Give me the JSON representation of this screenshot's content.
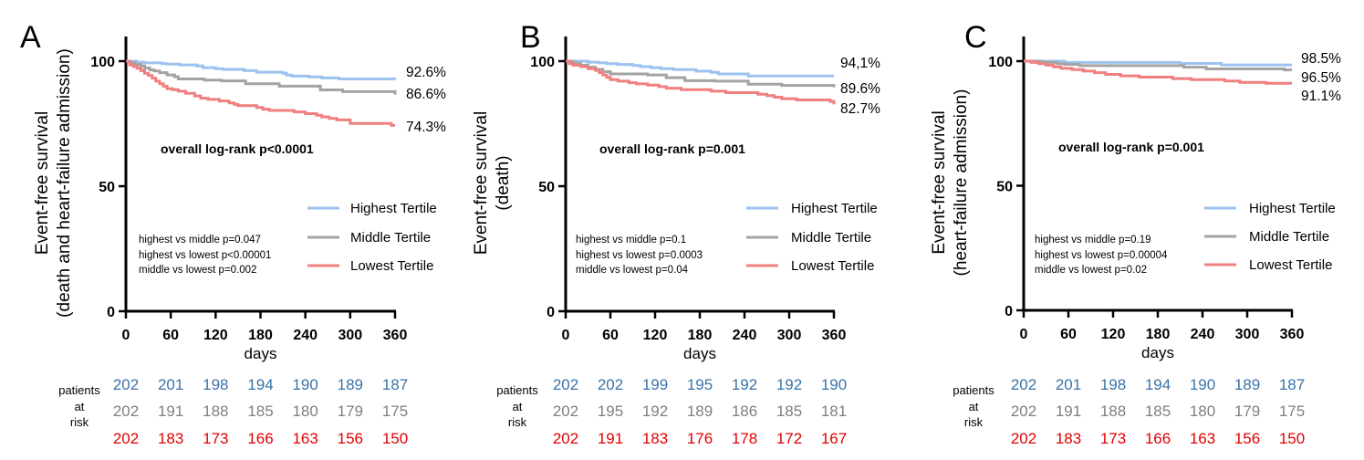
{
  "colors": {
    "highest": "#9cc3ef",
    "middle": "#a3a3a3",
    "lowest": "#f08080",
    "risk_highest": "#3a73a8",
    "risk_middle": "#7f7f7f",
    "risk_lowest": "#e00000"
  },
  "chart_data": [
    {
      "type": "line",
      "panel_letter": "A",
      "ylabel": [
        "Event-free survival",
        "(death and heart-failure admission)"
      ],
      "xlabel": "days",
      "xlim": [
        0,
        360
      ],
      "ylim": [
        0,
        100
      ],
      "xticks": [
        0,
        60,
        120,
        180,
        240,
        300,
        360
      ],
      "yticks": [
        0,
        50,
        100
      ],
      "annotation": "overall log-rank p<0.0001",
      "pairwise": [
        "highest vs middle p=0.047",
        "highest vs lowest p<0.00001",
        "middle vs lowest p=0.002"
      ],
      "series": [
        {
          "name": "Highest Tertile",
          "end_label": "92.6%",
          "x": [
            0,
            14,
            25,
            40,
            48,
            55,
            72,
            95,
            103,
            120,
            130,
            158,
            175,
            210,
            215,
            222,
            245,
            262,
            285,
            355,
            360
          ],
          "y": [
            100,
            99.6,
            99.3,
            99.3,
            99.0,
            98.8,
            98.5,
            98.1,
            97.4,
            97.0,
            96.7,
            96.2,
            95.6,
            95.2,
            94.4,
            94.0,
            93.7,
            93.3,
            92.9,
            92.9,
            92.6
          ]
        },
        {
          "name": "Middle Tertile",
          "end_label": "86.6%",
          "x": [
            0,
            5,
            12,
            20,
            25,
            32,
            38,
            45,
            55,
            65,
            70,
            105,
            128,
            160,
            205,
            260,
            290,
            355,
            360
          ],
          "y": [
            100,
            99.3,
            98.7,
            98.1,
            97.3,
            96.5,
            96.1,
            95.4,
            94.5,
            93.8,
            92.9,
            92.4,
            92.1,
            91.0,
            90.0,
            88.5,
            87.8,
            87.8,
            86.6
          ]
        },
        {
          "name": "Lowest Tertile",
          "end_label": "74.3%",
          "x": [
            0,
            5,
            10,
            15,
            20,
            25,
            30,
            35,
            40,
            45,
            50,
            55,
            62,
            70,
            80,
            92,
            100,
            110,
            125,
            138,
            145,
            150,
            162,
            175,
            183,
            192,
            210,
            225,
            240,
            255,
            262,
            272,
            282,
            290,
            300,
            345,
            355,
            360
          ],
          "y": [
            100,
            98.5,
            97.8,
            97.1,
            96.2,
            95.1,
            94.3,
            93.2,
            92.0,
            91.0,
            90.0,
            89.0,
            88.6,
            88.0,
            87.1,
            86.1,
            85.2,
            84.7,
            84.1,
            83.3,
            82.7,
            82.2,
            82.2,
            81.5,
            80.8,
            80.3,
            80.3,
            79.7,
            79.0,
            78.4,
            77.7,
            77.1,
            76.5,
            76.5,
            75.1,
            75.1,
            74.3,
            74.3
          ]
        }
      ],
      "at_risk": {
        "label": [
          "patients",
          "at",
          "risk"
        ],
        "rows": [
          [
            "202",
            "201",
            "198",
            "194",
            "190",
            "189",
            "187"
          ],
          [
            "202",
            "191",
            "188",
            "185",
            "180",
            "179",
            "175"
          ],
          [
            "202",
            "183",
            "173",
            "166",
            "163",
            "156",
            "150"
          ]
        ]
      }
    },
    {
      "type": "line",
      "panel_letter": "B",
      "ylabel": [
        "Event-free survival",
        "(death)"
      ],
      "xlabel": "days",
      "xlim": [
        0,
        360
      ],
      "ylim": [
        0,
        100
      ],
      "xticks": [
        0,
        60,
        120,
        180,
        240,
        300,
        360
      ],
      "yticks": [
        0,
        50,
        100
      ],
      "annotation": "overall log-rank p=0.001",
      "pairwise": [
        "highest vs middle p=0.1",
        "highest vs lowest p=0.0003",
        "middle vs lowest p=0.04"
      ],
      "series": [
        {
          "name": "Highest Tertile",
          "end_label": "94,1%",
          "x": [
            0,
            30,
            45,
            55,
            70,
            90,
            100,
            115,
            128,
            145,
            175,
            195,
            205,
            245,
            360
          ],
          "y": [
            100,
            99.6,
            99.3,
            99.0,
            98.7,
            98.3,
            97.8,
            97.4,
            97.0,
            96.6,
            96.0,
            95.5,
            94.9,
            94.1,
            94.1
          ]
        },
        {
          "name": "Middle Tertile",
          "end_label": "89.6%",
          "x": [
            0,
            10,
            20,
            30,
            40,
            50,
            60,
            110,
            135,
            160,
            200,
            245,
            290,
            355,
            360
          ],
          "y": [
            100,
            99.2,
            98.4,
            97.6,
            96.7,
            95.8,
            94.9,
            94.5,
            93.4,
            92.2,
            92.0,
            90.8,
            90.3,
            90.3,
            89.6
          ]
        },
        {
          "name": "Lowest Tertile",
          "end_label": "82.7%",
          "x": [
            0,
            5,
            10,
            20,
            30,
            40,
            45,
            50,
            55,
            60,
            70,
            85,
            95,
            110,
            125,
            135,
            155,
            175,
            195,
            215,
            250,
            258,
            270,
            280,
            290,
            310,
            345,
            355,
            360
          ],
          "y": [
            100,
            99.0,
            98.4,
            97.8,
            97.0,
            96.3,
            95.4,
            94.5,
            93.5,
            92.6,
            92.0,
            91.4,
            90.9,
            90.4,
            89.8,
            89.2,
            88.6,
            88.6,
            88.0,
            87.4,
            87.4,
            86.8,
            86.2,
            85.6,
            85.0,
            84.5,
            84.5,
            83.9,
            82.7
          ]
        }
      ],
      "at_risk": {
        "label": [
          "patients",
          "at",
          "risk"
        ],
        "rows": [
          [
            "202",
            "202",
            "199",
            "195",
            "192",
            "192",
            "190"
          ],
          [
            "202",
            "195",
            "192",
            "189",
            "186",
            "185",
            "181"
          ],
          [
            "202",
            "191",
            "183",
            "176",
            "178",
            "172",
            "167"
          ]
        ]
      }
    },
    {
      "type": "line",
      "panel_letter": "C",
      "ylabel": [
        "Event-free survival",
        "(heart-failure admission)"
      ],
      "xlabel": "days",
      "xlim": [
        0,
        360
      ],
      "ylim": [
        0,
        100
      ],
      "xticks": [
        0,
        60,
        120,
        180,
        240,
        300,
        360
      ],
      "yticks": [
        0,
        50,
        100
      ],
      "annotation": "overall log-rank p=0.001",
      "pairwise": [
        "highest vs middle p=0.19",
        "highest vs lowest p=0.00004",
        "middle vs lowest p=0.02"
      ],
      "series": [
        {
          "name": "Highest Tertile",
          "end_label": "98.5%",
          "x": [
            0,
            55,
            210,
            265,
            360
          ],
          "y": [
            100,
            99.5,
            99.1,
            98.5,
            98.5
          ]
        },
        {
          "name": "Middle Tertile",
          "end_label": "96.5%",
          "x": [
            0,
            25,
            45,
            55,
            75,
            140,
            215,
            245,
            350,
            360
          ],
          "y": [
            100,
            99.5,
            99.0,
            98.7,
            98.2,
            98.2,
            97.6,
            96.9,
            96.5,
            96.5
          ]
        },
        {
          "name": "Lowest Tertile",
          "end_label": "91.1%",
          "x": [
            0,
            10,
            20,
            30,
            40,
            50,
            65,
            80,
            95,
            110,
            130,
            155,
            180,
            200,
            225,
            255,
            270,
            290,
            310,
            325,
            360
          ],
          "y": [
            100,
            99.5,
            99.0,
            98.4,
            97.7,
            97.1,
            96.6,
            96.0,
            95.4,
            94.7,
            94.1,
            93.6,
            93.6,
            93.0,
            92.6,
            92.6,
            92.0,
            91.5,
            91.5,
            91.1,
            91.1
          ]
        }
      ],
      "at_risk": {
        "label": [
          "patients",
          "at",
          "risk"
        ],
        "rows": [
          [
            "202",
            "201",
            "198",
            "194",
            "190",
            "189",
            "187"
          ],
          [
            "202",
            "191",
            "188",
            "185",
            "180",
            "179",
            "175"
          ],
          [
            "202",
            "183",
            "173",
            "166",
            "163",
            "156",
            "150"
          ]
        ]
      }
    }
  ]
}
